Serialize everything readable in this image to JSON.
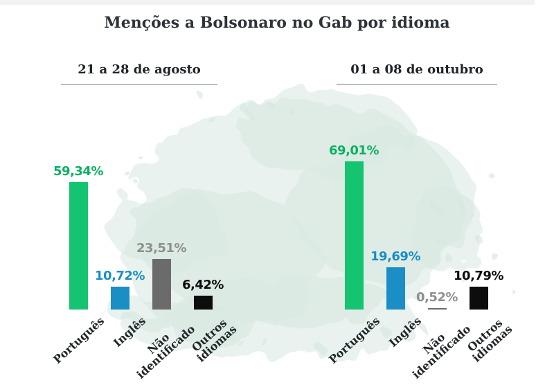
{
  "title": "Menções a Bolsonaro no Gab por idioma",
  "chart_data": {
    "type": "bar",
    "unit": "%",
    "categories": [
      "Português",
      "Inglês",
      "Não identificado",
      "Outros idiomas"
    ],
    "category_lines": [
      [
        "Português"
      ],
      [
        "Inglês"
      ],
      [
        "Não",
        "identificado"
      ],
      [
        "Outros",
        "idiomas"
      ]
    ],
    "groups": [
      {
        "label": "21 a 28 de agosto",
        "values": [
          59.34,
          10.72,
          23.51,
          6.42
        ],
        "labels": [
          "59,34%",
          "10,72%",
          "23,51%",
          "6,42%"
        ]
      },
      {
        "label": "01 a 08 de outubro",
        "values": [
          69.01,
          19.69,
          0.52,
          10.79
        ],
        "labels": [
          "69,01%",
          "19,69%",
          "0,52%",
          "10,79%"
        ]
      }
    ],
    "bar_colors": [
      "#15c471",
      "#1a8ec5",
      "#6b6b6b",
      "#0d0d0d"
    ],
    "value_label_colors": [
      "#0caf63",
      "#1a8ec5",
      "#8f8f8f",
      "#0d0d0d"
    ],
    "ylim": [
      0,
      75
    ],
    "grid": false,
    "legend": "none"
  },
  "style": {
    "title_color": "#2d3338",
    "category_label_color": "#20262a",
    "underline_color": "#babebe",
    "splash_color": "#d7e7e0",
    "background": "#ffffff"
  }
}
